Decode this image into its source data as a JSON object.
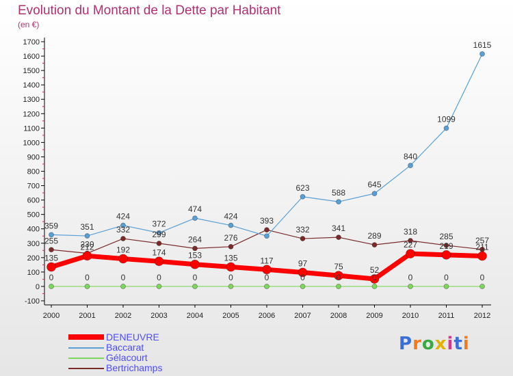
{
  "title": "Evolution du Montant de la Dette par Habitant",
  "subtitle": "(en €)",
  "logo": {
    "text": "Proxiti",
    "colors": [
      "#3b6fd6",
      "#f07a1c",
      "#39a845",
      "#e0b400",
      "#d03a8c",
      "#3b6fd6",
      "#f07a1c"
    ]
  },
  "chart_data": {
    "type": "line",
    "x": [
      "2000",
      "2001",
      "2002",
      "2003",
      "2004",
      "2005",
      "2006",
      "2007",
      "2008",
      "2009",
      "2010",
      "2011",
      "2012"
    ],
    "yticks": [
      "-100",
      "0",
      "100",
      "200",
      "300",
      "400",
      "500",
      "600",
      "700",
      "800",
      "900",
      "1000",
      "1100",
      "1200",
      "1300",
      "1400",
      "1500",
      "1600",
      "1700"
    ],
    "ylim": [
      -100,
      1700
    ],
    "grid": false,
    "legend_position": "bottom-left",
    "series": [
      {
        "name": "DENEUVRE",
        "color": "#ff0000",
        "values": [
          135,
          212,
          192,
          174,
          153,
          135,
          117,
          97,
          75,
          52,
          227,
          219,
          211
        ],
        "labels": [
          "135",
          "212",
          "192",
          "174",
          "153",
          "135",
          "117",
          "97",
          "75",
          "52",
          "227",
          "219",
          "211"
        ]
      },
      {
        "name": "Baccarat",
        "color": "#5a9fd4",
        "values": [
          359,
          351,
          424,
          372,
          474,
          424,
          350,
          623,
          588,
          645,
          840,
          1099,
          1615
        ],
        "labels": [
          "359",
          "351",
          "424",
          "372",
          "474",
          "424",
          "",
          "623",
          "588",
          "645",
          "840",
          "1099",
          "1615"
        ]
      },
      {
        "name": "Gélacourt",
        "color": "#7fd65c",
        "values": [
          0,
          0,
          0,
          0,
          0,
          0,
          0,
          0,
          0,
          0,
          0,
          0,
          0
        ],
        "labels": [
          "0",
          "0",
          "0",
          "0",
          "0",
          "0",
          "0",
          "0",
          "0",
          "0",
          "0",
          "0",
          "0"
        ]
      },
      {
        "name": "Bertrichamps",
        "color": "#7b2a2a",
        "values": [
          255,
          230,
          332,
          299,
          264,
          276,
          393,
          332,
          341,
          289,
          318,
          285,
          257
        ],
        "labels": [
          "255",
          "230",
          "332",
          "299",
          "264",
          "276",
          "393",
          "332",
          "341",
          "289",
          "318",
          "285",
          "257"
        ]
      }
    ]
  }
}
